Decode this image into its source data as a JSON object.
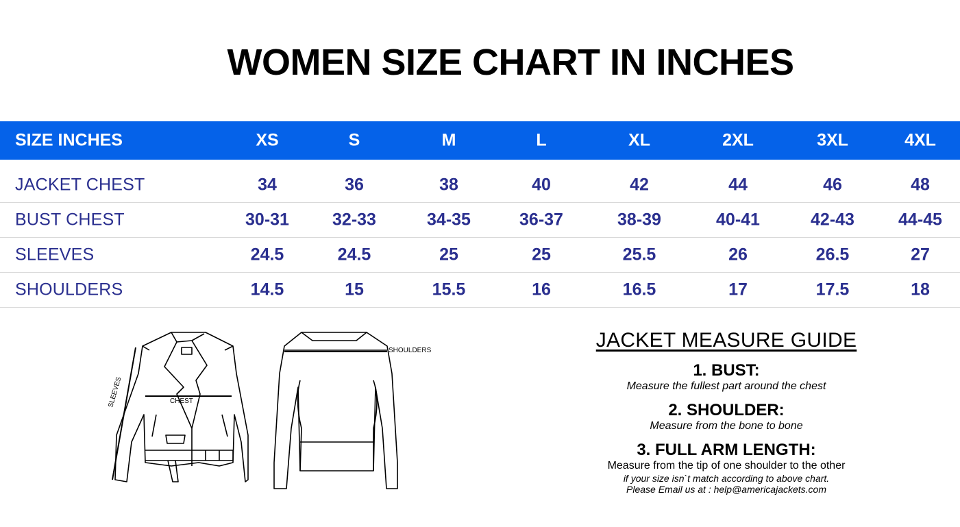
{
  "title": "WOMEN SIZE CHART IN INCHES",
  "colors": {
    "header_bg": "#0562e9",
    "row_text": "#2a2f8f"
  },
  "table": {
    "header_label": "SIZE INCHES",
    "sizes": [
      "XS",
      "S",
      "M",
      "L",
      "XL",
      "2XL",
      "3XL",
      "4XL"
    ],
    "rows": [
      {
        "label": "JACKET CHEST",
        "values": [
          "34",
          "36",
          "38",
          "40",
          "42",
          "44",
          "46",
          "48"
        ]
      },
      {
        "label": "BUST CHEST",
        "values": [
          "30-31",
          "32-33",
          "34-35",
          "36-37",
          "38-39",
          "40-41",
          "42-43",
          "44-45"
        ]
      },
      {
        "label": "SLEEVES",
        "values": [
          "24.5",
          "24.5",
          "25",
          "25",
          "25.5",
          "26",
          "26.5",
          "27"
        ]
      },
      {
        "label": "SHOULDERS",
        "values": [
          "14.5",
          "15",
          "15.5",
          "16",
          "16.5",
          "17",
          "17.5",
          "18"
        ]
      }
    ]
  },
  "illustration": {
    "sleeves_label": "SLEEVES",
    "chest_label": "CHEST",
    "shoulders_label": "SHOULDERS"
  },
  "guide": {
    "title": "JACKET MEASURE GUIDE",
    "bust_heading": "1. BUST:",
    "bust_text": "Measure the fullest part around the chest",
    "shoulder_heading": "2. SHOULDER:",
    "shoulder_text": "Measure from the bone to bone",
    "arm_heading": "3. FULL ARM LENGTH:",
    "arm_text": "Measure from the tip of one shoulder to the other",
    "note_line1": "if your size isn`t match according to above chart.",
    "note_line2": "Please Email us at : help@americajackets.com"
  }
}
